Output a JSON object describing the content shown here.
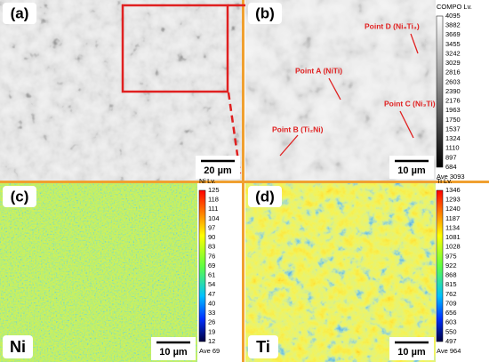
{
  "panels": [
    {
      "label": "(a)",
      "scale_bar": "20 µm"
    },
    {
      "label": "(b)",
      "scale_bar": "10 µm",
      "annotations": [
        "Point D (Ni₄Ti₃)",
        "Point A (NiTi)",
        "Point C (Ni₃Ti)",
        "Point B (Ti₂Ni)"
      ],
      "colorbar": {
        "title": "COMPO Lv.",
        "levels": [
          4095,
          3882,
          3669,
          3455,
          3242,
          3029,
          2816,
          2603,
          2390,
          2176,
          1963,
          1750,
          1537,
          1324,
          1110,
          897,
          684
        ],
        "average": "Ave 3093"
      }
    },
    {
      "label": "(c)",
      "element": "Ni",
      "scale_bar": "10 µm",
      "colorbar": {
        "title": "Ni Lv.",
        "levels": [
          125,
          118,
          111,
          104,
          97,
          90,
          83,
          76,
          69,
          61,
          54,
          47,
          40,
          33,
          26,
          19,
          12
        ],
        "average": "Ave 69"
      }
    },
    {
      "label": "(d)",
      "element": "Ti",
      "scale_bar": "10 µm",
      "colorbar": {
        "title": "Ti Lv.",
        "levels": [
          1346,
          1293,
          1240,
          1187,
          1134,
          1081,
          1028,
          975,
          922,
          868,
          815,
          762,
          709,
          656,
          603,
          550,
          497
        ],
        "average": "Ave 964"
      }
    }
  ]
}
